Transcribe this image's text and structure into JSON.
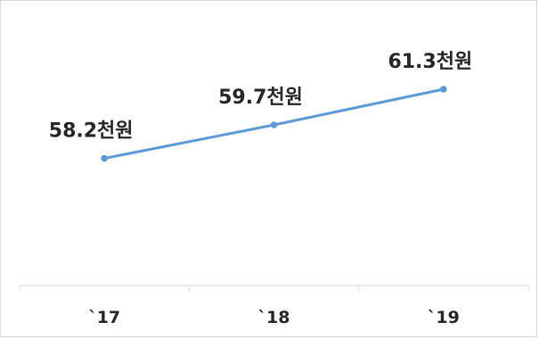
{
  "chart_data": {
    "type": "line",
    "categories": [
      "`17",
      "`18",
      "`19"
    ],
    "series": [
      {
        "values": [
          58.2,
          59.7,
          61.3
        ],
        "labels": [
          "58.2천원",
          "59.7천원",
          "61.3천원"
        ]
      }
    ],
    "ylim": [
      52.5,
      64.5
    ],
    "grid": false,
    "legend": "none",
    "colors": {
      "line": "#5b9bd5",
      "axis": "#d9d9d9",
      "text": "#262626"
    }
  }
}
